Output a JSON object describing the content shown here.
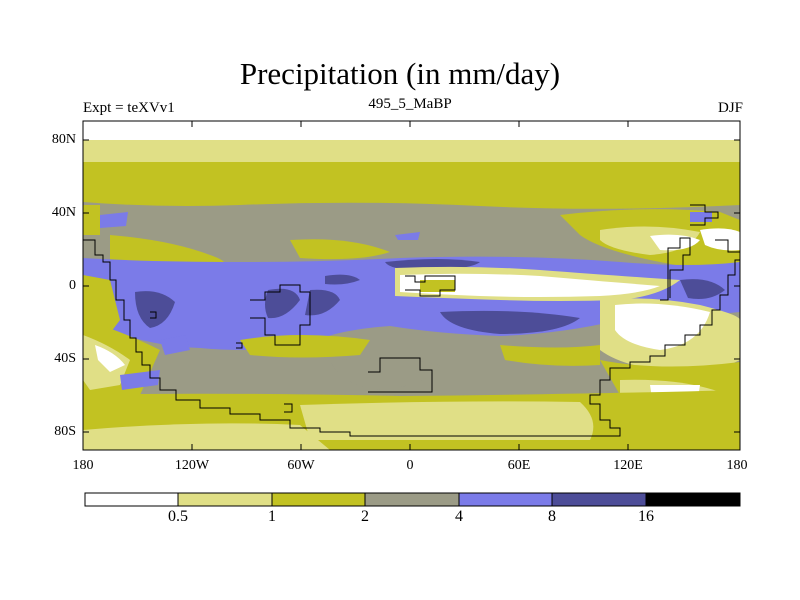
{
  "header": {
    "title": "Precipitation (in mm/day)",
    "left_label": "Expt = teXVv1",
    "center_label": "495_5_MaBP",
    "right_label": "DJF"
  },
  "axes": {
    "y_ticks": [
      {
        "value": 80,
        "label": "80N"
      },
      {
        "value": 40,
        "label": "40N"
      },
      {
        "value": 0,
        "label": "0"
      },
      {
        "value": -40,
        "label": "40S"
      },
      {
        "value": -80,
        "label": "80S"
      }
    ],
    "x_ticks": [
      {
        "value": -180,
        "label": "180"
      },
      {
        "value": -120,
        "label": "120W"
      },
      {
        "value": -60,
        "label": "60W"
      },
      {
        "value": 0,
        "label": "0"
      },
      {
        "value": 60,
        "label": "60E"
      },
      {
        "value": 120,
        "label": "120E"
      },
      {
        "value": 180,
        "label": "180"
      }
    ]
  },
  "colorbar": {
    "levels": [
      "0.5",
      "1",
      "2",
      "4",
      "8",
      "16"
    ],
    "colors": [
      "#ffffff",
      "#e0df86",
      "#c2c222",
      "#9b9b86",
      "#7b7be8",
      "#4d4d98",
      "#000000"
    ]
  }
}
